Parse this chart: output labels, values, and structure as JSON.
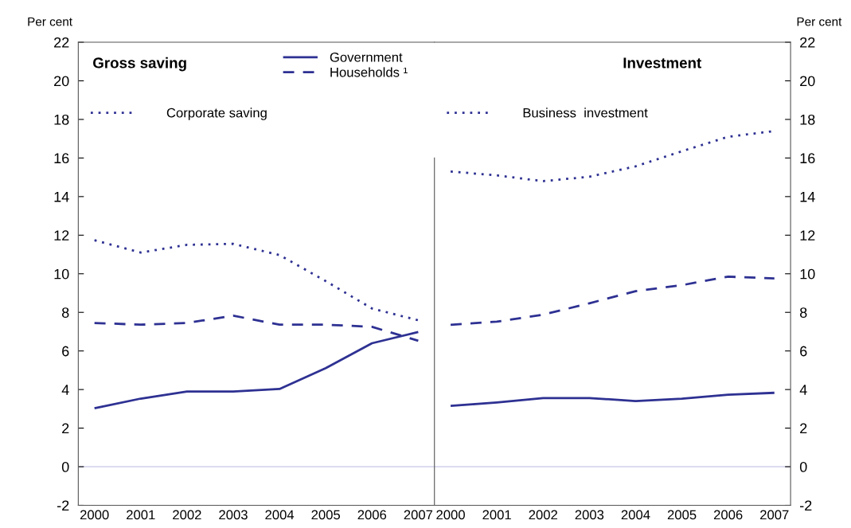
{
  "chart_data": [
    {
      "type": "line",
      "title": "Gross saving",
      "ylabel": "Per cent",
      "categories": [
        "2000",
        "2001",
        "2002",
        "2003",
        "2004",
        "2005",
        "2006",
        "2007"
      ],
      "ylim": [
        -2,
        22
      ],
      "yticks": [
        -2,
        0,
        2,
        4,
        6,
        8,
        10,
        12,
        14,
        16,
        18,
        20,
        22
      ],
      "grid": false,
      "legend": "top",
      "ref_lines": [
        {
          "axis": "y",
          "value": 0,
          "color": "#dcdcf0"
        }
      ],
      "series": [
        {
          "name": "Government",
          "color": "#2e3192",
          "line_style": "solid",
          "values": [
            3.03,
            3.53,
            3.9,
            3.9,
            4.03,
            5.11,
            6.4,
            6.98
          ]
        },
        {
          "name": "Households ¹",
          "color": "#2e3192",
          "line_style": "dashed",
          "values": [
            7.45,
            7.36,
            7.45,
            7.83,
            7.36,
            7.36,
            7.25,
            6.53
          ]
        },
        {
          "name": "Corporate saving",
          "color": "#2e3192",
          "line_style": "dotted",
          "values": [
            11.74,
            11.1,
            11.5,
            11.55,
            10.97,
            9.62,
            8.2,
            7.59
          ]
        }
      ]
    },
    {
      "type": "line",
      "title": "Investment",
      "ylabel": "Per cent",
      "categories": [
        "2000",
        "2001",
        "2002",
        "2003",
        "2004",
        "2005",
        "2006",
        "2007"
      ],
      "ylim": [
        -2,
        22
      ],
      "yticks": [
        -2,
        0,
        2,
        4,
        6,
        8,
        10,
        12,
        14,
        16,
        18,
        20,
        22
      ],
      "grid": false,
      "legend": "top left",
      "ref_lines": [
        {
          "axis": "y",
          "value": 0,
          "color": "#dcdcf0"
        }
      ],
      "series": [
        {
          "color": "#2e3192",
          "line_style": "solid",
          "values": [
            3.15,
            3.33,
            3.56,
            3.56,
            3.4,
            3.53,
            3.73,
            3.83
          ]
        },
        {
          "color": "#2e3192",
          "line_style": "dashed",
          "values": [
            7.35,
            7.52,
            7.88,
            8.47,
            9.1,
            9.41,
            9.85,
            9.76
          ]
        },
        {
          "name": "Business  investment",
          "color": "#2e3192",
          "line_style": "dotted",
          "values": [
            15.3,
            15.1,
            14.8,
            15.03,
            15.57,
            16.35,
            17.1,
            17.4
          ]
        }
      ]
    }
  ]
}
